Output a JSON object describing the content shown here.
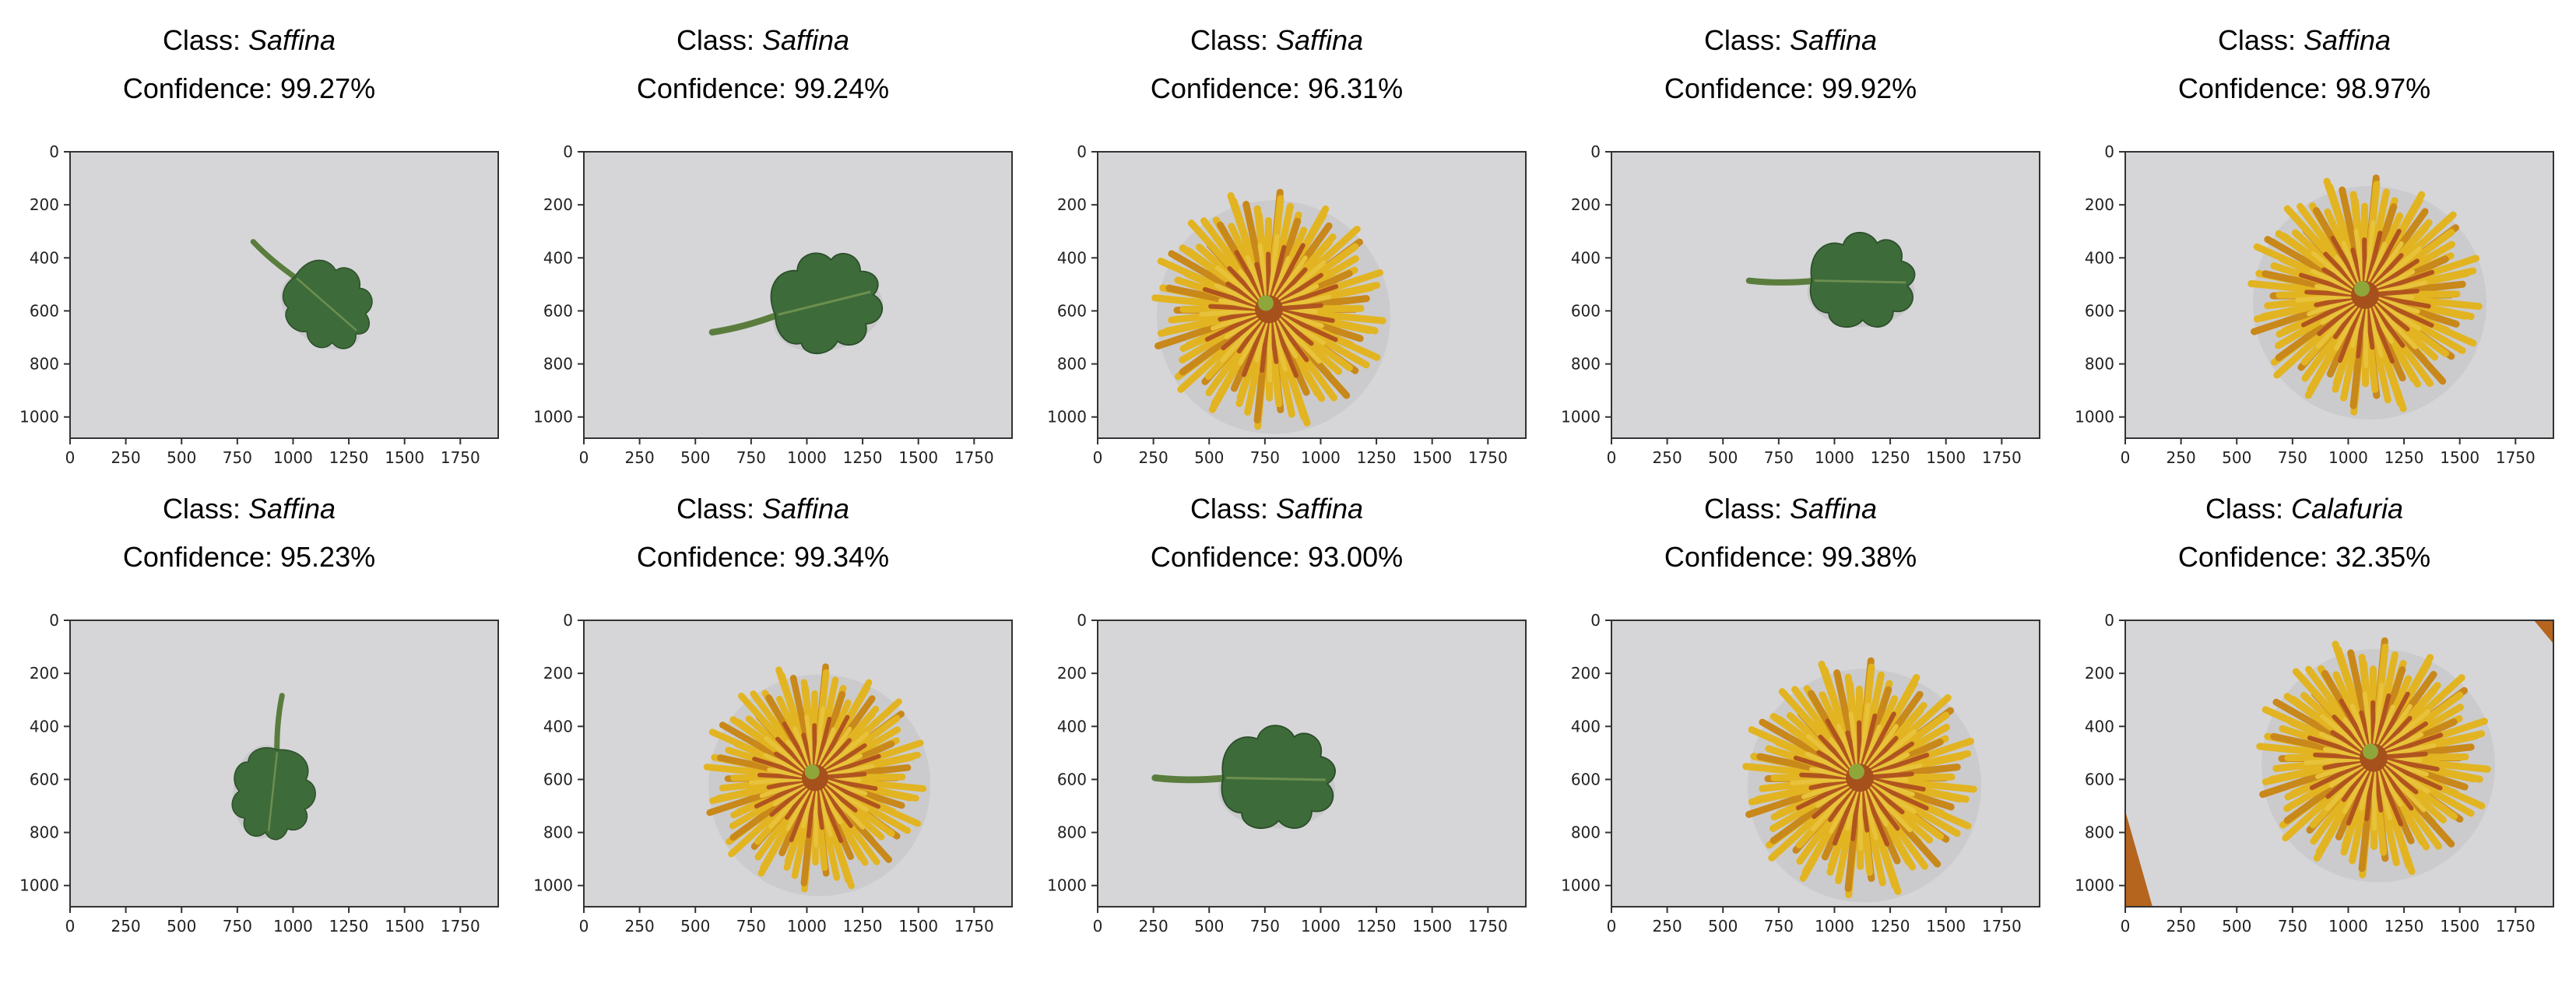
{
  "panels": [
    {
      "class_label": "Class:",
      "class_name": "Saffina",
      "confidence_label": "Confidence: 99.27%",
      "subject": "leaf"
    },
    {
      "class_label": "Class:",
      "class_name": "Saffina",
      "confidence_label": "Confidence: 99.24%",
      "subject": "leaf"
    },
    {
      "class_label": "Class:",
      "class_name": "Saffina",
      "confidence_label": "Confidence: 96.31%",
      "subject": "flower"
    },
    {
      "class_label": "Class:",
      "class_name": "Saffina",
      "confidence_label": "Confidence: 99.92%",
      "subject": "leaf"
    },
    {
      "class_label": "Class:",
      "class_name": "Saffina",
      "confidence_label": "Confidence: 98.97%",
      "subject": "flower"
    },
    {
      "class_label": "Class:",
      "class_name": "Saffina",
      "confidence_label": "Confidence: 95.23%",
      "subject": "leaf"
    },
    {
      "class_label": "Class:",
      "class_name": "Saffina",
      "confidence_label": "Confidence: 99.34%",
      "subject": "flower"
    },
    {
      "class_label": "Class:",
      "class_name": "Saffina",
      "confidence_label": "Confidence: 93.00%",
      "subject": "leaf"
    },
    {
      "class_label": "Class:",
      "class_name": "Saffina",
      "confidence_label": "Confidence: 99.38%",
      "subject": "flower"
    },
    {
      "class_label": "Class:",
      "class_name": "Calafuria",
      "confidence_label": "Confidence: 32.35%",
      "subject": "flower"
    }
  ],
  "axes": {
    "x_ticks": [
      "0",
      "250",
      "500",
      "750",
      "1000",
      "1250",
      "1500",
      "1750"
    ],
    "y_ticks": [
      "0",
      "200",
      "400",
      "600",
      "800",
      "1000"
    ]
  },
  "colors": {
    "background": "#d6d6d8",
    "leaf": "#3e6b3a",
    "flower": "#e2b422",
    "flower_center": "#a6501c"
  }
}
